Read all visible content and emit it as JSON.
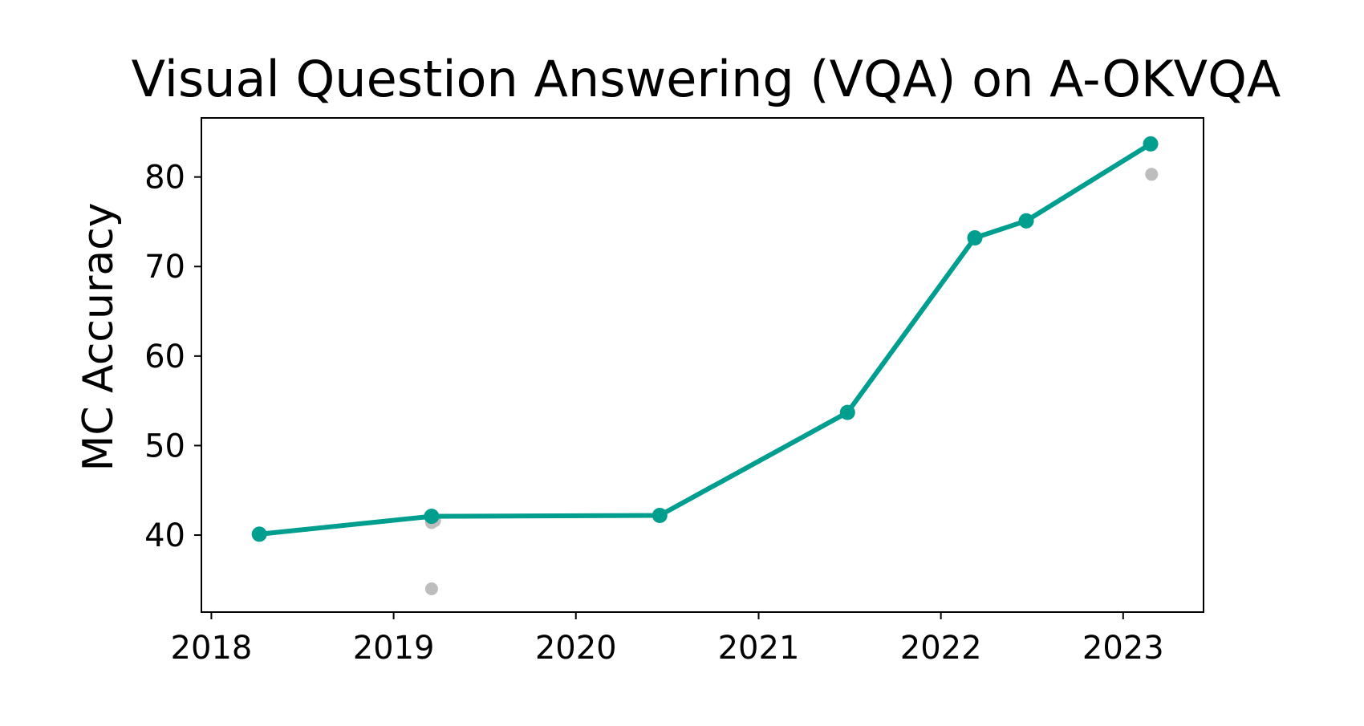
{
  "colors": {
    "line": "#009e8f",
    "background_points": "#bdbdbd",
    "axes": "#000000"
  },
  "chart_data": {
    "type": "line",
    "title": "Visual Question Answering (VQA) on A-OKVQA",
    "xlabel": "",
    "ylabel": "MC Accuracy",
    "xlim": [
      "2017-12-12",
      "2023-06-11"
    ],
    "ylim": [
      31.4,
      86.6
    ],
    "x_ticks": [
      "2018",
      "2019",
      "2020",
      "2021",
      "2022",
      "2023"
    ],
    "y_ticks": [
      "40",
      "50",
      "60",
      "70",
      "80"
    ],
    "grid": false,
    "series": [
      {
        "points": [
          {
            "x": "2018-04-07",
            "y": 40.1
          },
          {
            "x": "2019-03-18",
            "y": 42.1
          },
          {
            "x": "2020-06-17",
            "y": 42.2
          },
          {
            "x": "2021-06-28",
            "y": 53.7
          },
          {
            "x": "2022-03-10",
            "y": 73.2
          },
          {
            "x": "2022-06-21",
            "y": 75.1
          },
          {
            "x": "2023-02-25",
            "y": 83.7
          }
        ]
      }
    ],
    "other_points": [
      {
        "x": "2019-03-18",
        "y": 41.4
      },
      {
        "x": "2019-03-24",
        "y": 41.6
      },
      {
        "x": "2019-03-18",
        "y": 34.0
      },
      {
        "x": "2023-02-27",
        "y": 80.3
      }
    ]
  }
}
